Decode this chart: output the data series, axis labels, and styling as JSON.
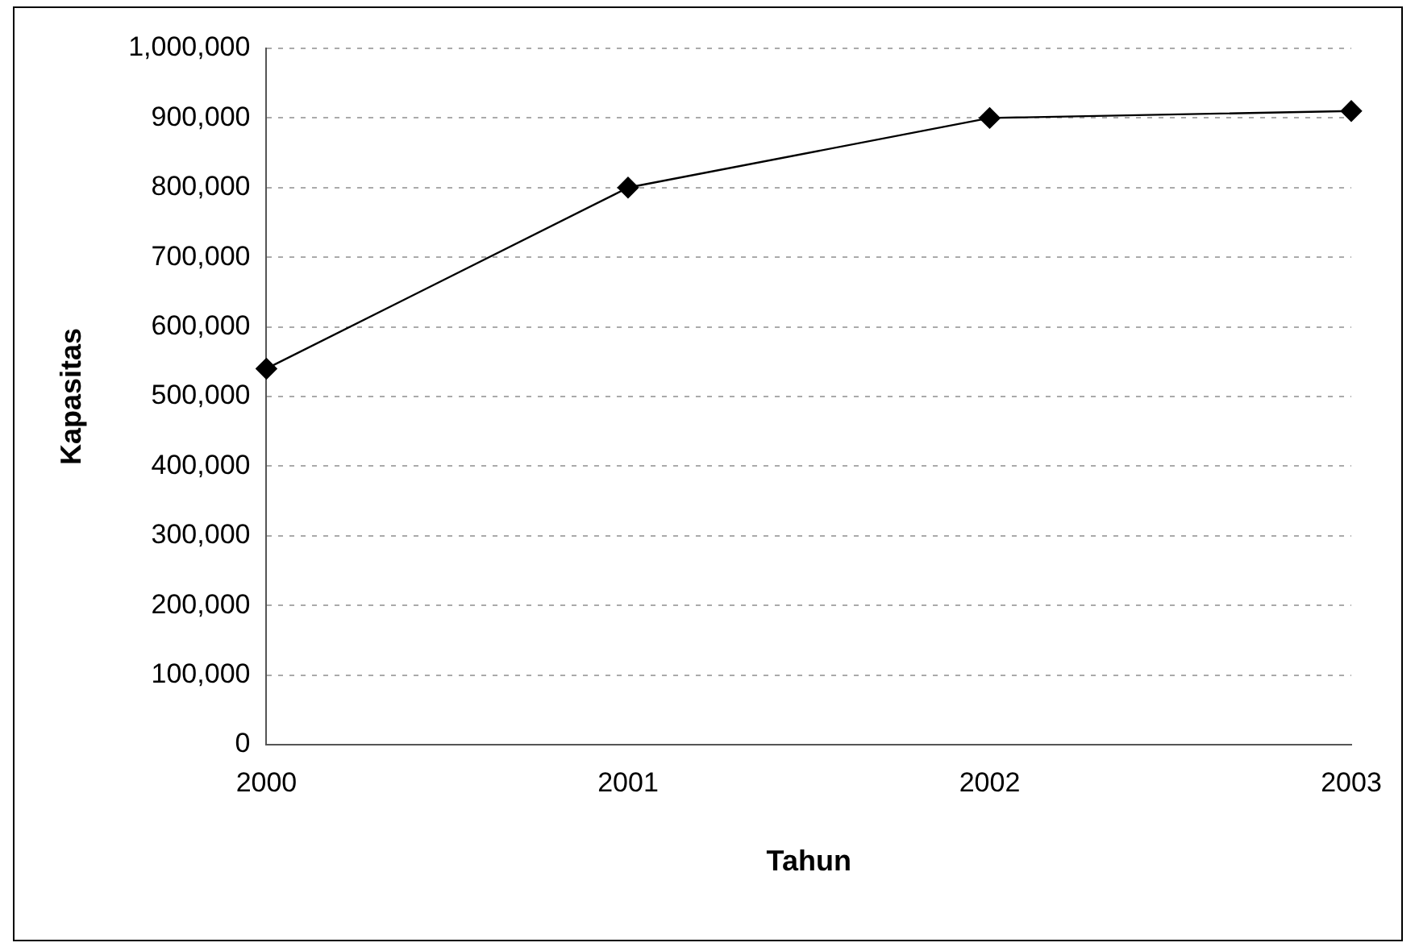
{
  "chart_data": {
    "type": "line",
    "xlabel": "Tahun",
    "ylabel": "Kapasitas",
    "categories": [
      "2000",
      "2001",
      "2002",
      "2003"
    ],
    "series": [
      {
        "color": "#000000",
        "values": [
          540000,
          800000,
          900000,
          910000
        ]
      }
    ],
    "ylim": [
      0,
      1000000
    ],
    "yticks": [
      {
        "value": 0,
        "label": "0"
      },
      {
        "value": 100000,
        "label": "100,000"
      },
      {
        "value": 200000,
        "label": "200,000"
      },
      {
        "value": 300000,
        "label": "300,000"
      },
      {
        "value": 400000,
        "label": "400,000"
      },
      {
        "value": 500000,
        "label": "500,000"
      },
      {
        "value": 600000,
        "label": "600,000"
      },
      {
        "value": 700000,
        "label": "700,000"
      },
      {
        "value": 800000,
        "label": "800,000"
      },
      {
        "value": 900000,
        "label": "900,000"
      },
      {
        "value": 1000000,
        "label": "1,000,000"
      }
    ],
    "grid": "y",
    "legend": false,
    "marker": "diamond",
    "line_style": "solid"
  }
}
